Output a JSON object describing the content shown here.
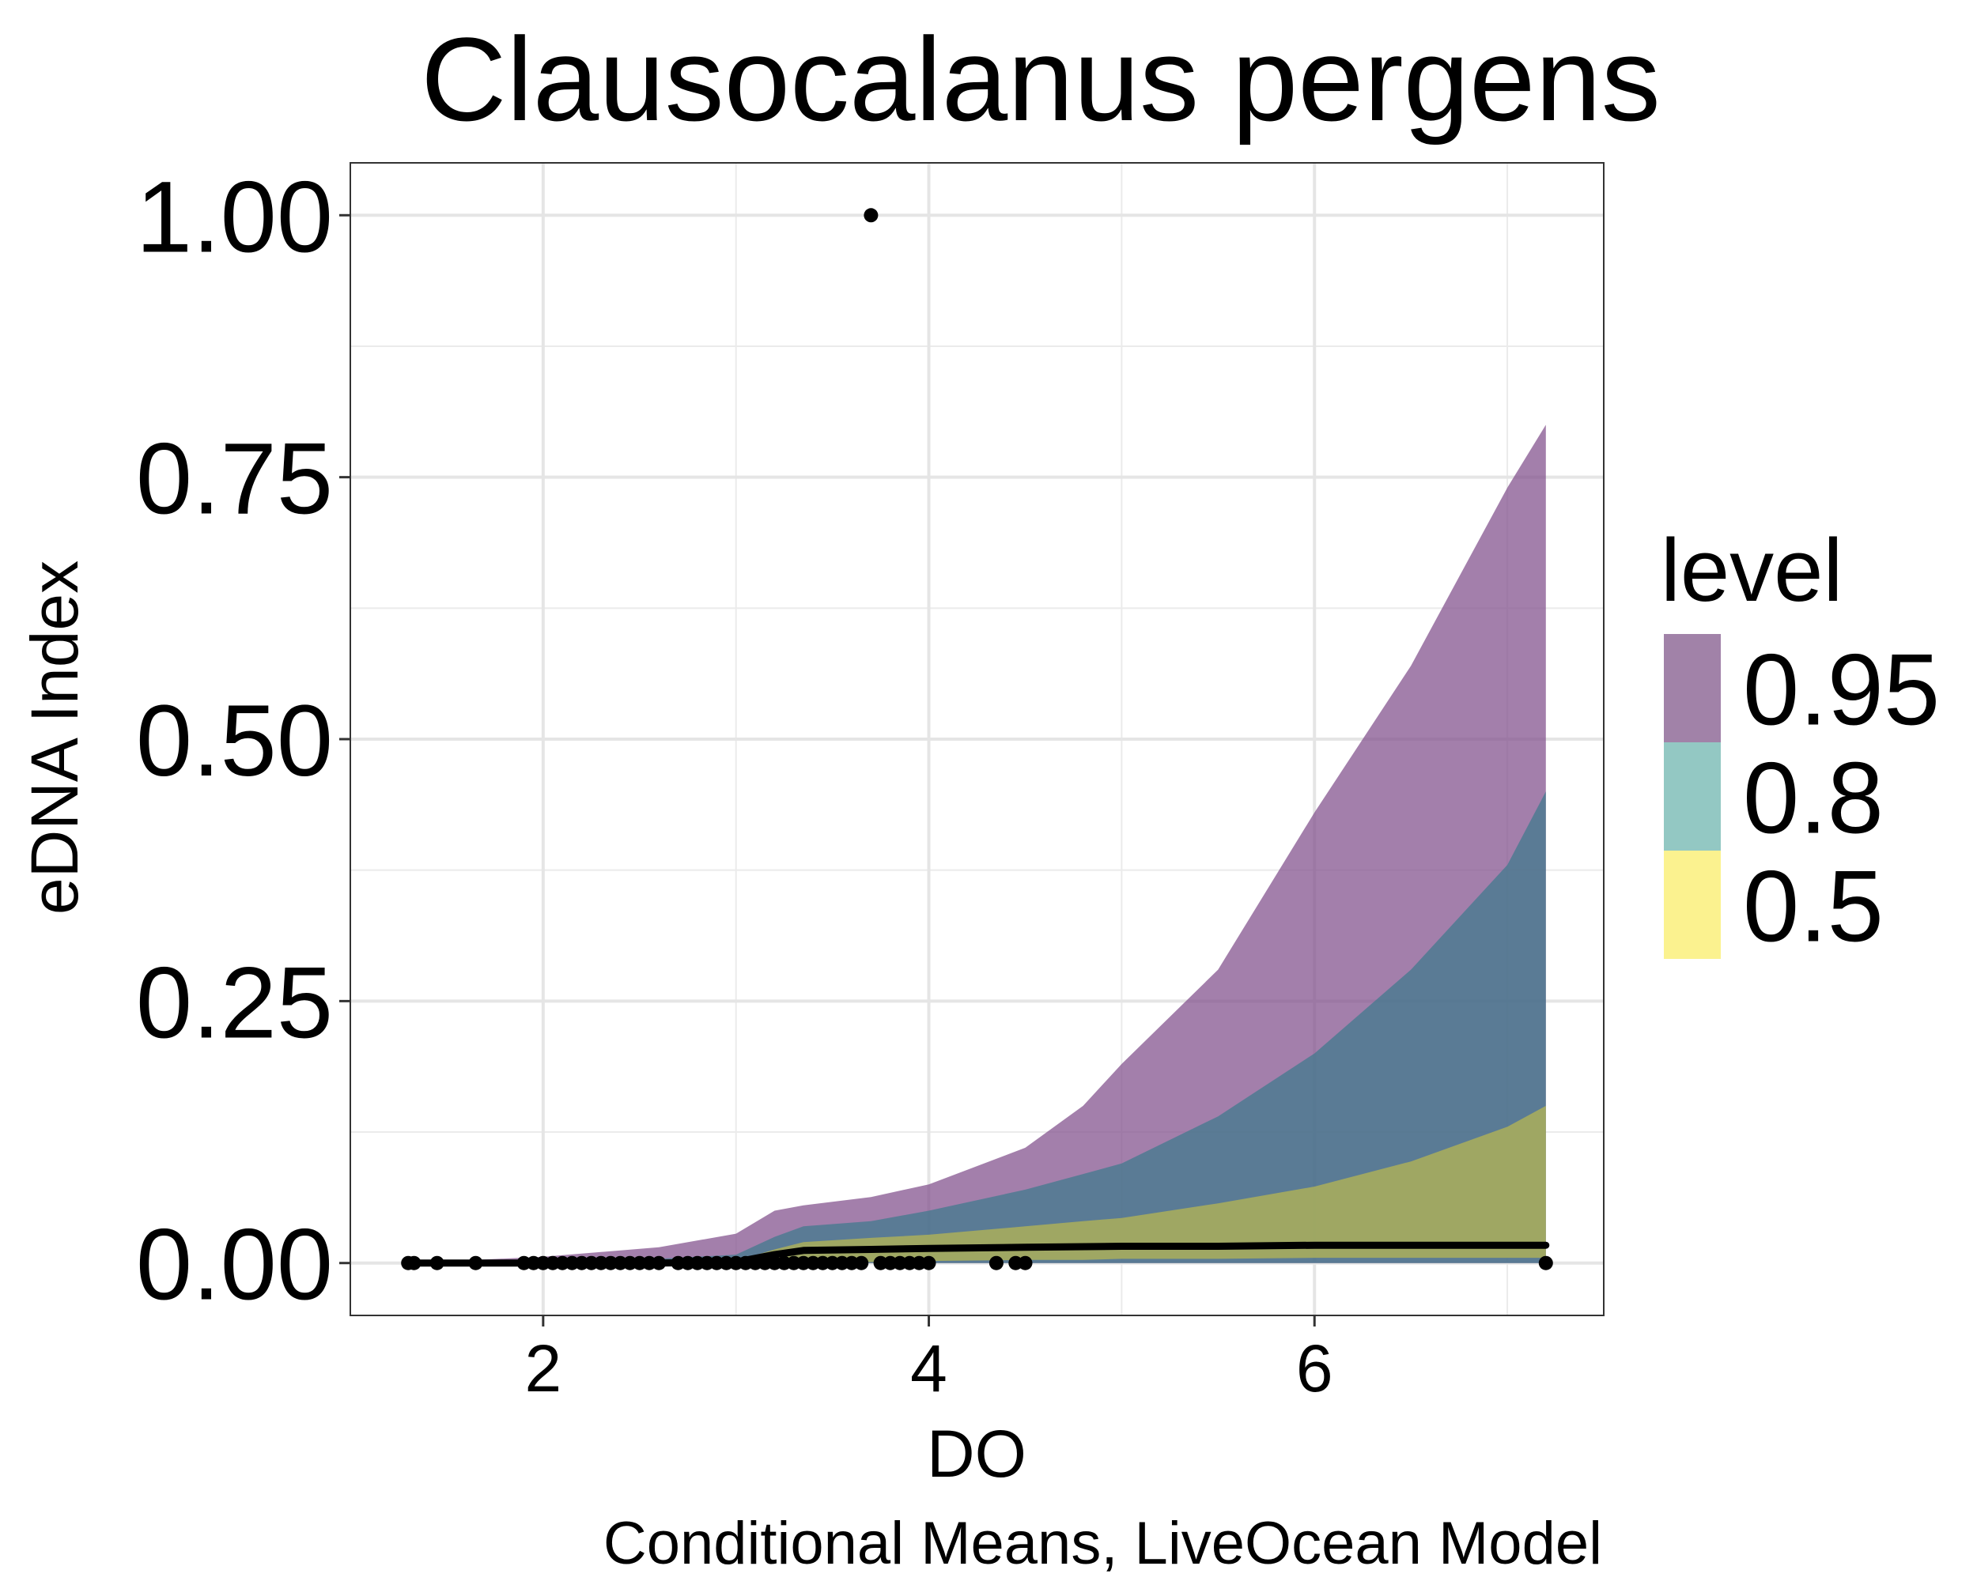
{
  "chart_data": {
    "type": "area",
    "title": "Clausocalanus pergens",
    "xlabel": "DO",
    "ylabel": "eDNA Index",
    "caption": "Conditional Means, LiveOcean Model",
    "xlim": [
      1.0,
      7.5
    ],
    "ylim": [
      -0.05,
      1.05
    ],
    "x_ticks": [
      2,
      4,
      6
    ],
    "x_tick_labels": [
      "2",
      "4",
      "6"
    ],
    "y_ticks": [
      0,
      0.25,
      0.5,
      0.75,
      1.0
    ],
    "y_tick_labels": [
      "0.00",
      "0.25",
      "0.50",
      "0.75",
      "1.00"
    ],
    "grid": true,
    "legend": {
      "title": "level",
      "placement": "right",
      "entries": [
        {
          "label": "0.95",
          "color": "#A182A8"
        },
        {
          "label": "0.8",
          "color": "#93C8C3"
        },
        {
          "label": "0.5",
          "color": "#FBF28F"
        }
      ]
    },
    "bands": [
      {
        "level": "0.95",
        "color": "#7F4E8A",
        "x": [
          1.3,
          2.0,
          2.6,
          3.0,
          3.2,
          3.35,
          3.7,
          4.0,
          4.5,
          4.8,
          5.0,
          5.5,
          6.0,
          6.5,
          7.0,
          7.2
        ],
        "lower": [
          0,
          0,
          0,
          0,
          0,
          0,
          0,
          0,
          0,
          0,
          0,
          0,
          0,
          0,
          0,
          0
        ],
        "upper": [
          0.0,
          0.006,
          0.015,
          0.028,
          0.05,
          0.055,
          0.063,
          0.075,
          0.11,
          0.15,
          0.19,
          0.28,
          0.43,
          0.57,
          0.74,
          0.8
        ]
      },
      {
        "level": "0.8",
        "color": "#3F7A8C",
        "x": [
          1.3,
          2.0,
          2.6,
          3.0,
          3.2,
          3.35,
          3.7,
          4.0,
          4.5,
          4.8,
          5.0,
          5.5,
          6.0,
          6.5,
          7.0,
          7.2
        ],
        "lower": [
          0,
          0,
          0,
          0,
          0,
          0,
          0,
          0,
          0,
          0,
          0,
          0,
          0,
          0,
          0,
          0
        ],
        "upper": [
          0.0,
          0.002,
          0.004,
          0.008,
          0.025,
          0.035,
          0.04,
          0.05,
          0.07,
          0.085,
          0.095,
          0.14,
          0.2,
          0.28,
          0.38,
          0.45
        ]
      },
      {
        "level": "0.5",
        "color": "#BAB851",
        "x": [
          1.3,
          2.0,
          2.6,
          3.0,
          3.2,
          3.35,
          3.7,
          4.0,
          4.5,
          4.8,
          5.0,
          5.5,
          6.0,
          6.5,
          7.0,
          7.2
        ],
        "lower": [
          0,
          0,
          0,
          0,
          0,
          0,
          0.001,
          0.002,
          0.003,
          0.003,
          0.004,
          0.004,
          0.005,
          0.005,
          0.005,
          0.005
        ],
        "upper": [
          0.0,
          0.0,
          0.001,
          0.002,
          0.013,
          0.02,
          0.024,
          0.027,
          0.035,
          0.04,
          0.043,
          0.057,
          0.073,
          0.097,
          0.13,
          0.15
        ]
      }
    ],
    "mean_line": {
      "color": "#000000",
      "x": [
        1.3,
        2.0,
        2.6,
        3.0,
        3.2,
        3.35,
        3.7,
        4.0,
        4.5,
        5.0,
        5.5,
        6.0,
        6.5,
        7.0,
        7.2
      ],
      "y": [
        0.0,
        0.0,
        0.0,
        0.001,
        0.008,
        0.012,
        0.013,
        0.014,
        0.015,
        0.016,
        0.016,
        0.017,
        0.017,
        0.017,
        0.017
      ]
    },
    "points": {
      "color": "#000000",
      "x": [
        1.3,
        1.33,
        1.45,
        1.65,
        1.9,
        1.95,
        2.0,
        2.05,
        2.1,
        2.15,
        2.2,
        2.25,
        2.3,
        2.35,
        2.4,
        2.45,
        2.5,
        2.55,
        2.6,
        2.7,
        2.75,
        2.8,
        2.85,
        2.9,
        2.95,
        3.0,
        3.05,
        3.1,
        3.15,
        3.2,
        3.25,
        3.3,
        3.35,
        3.4,
        3.45,
        3.5,
        3.55,
        3.6,
        3.65,
        3.7,
        3.75,
        3.8,
        3.85,
        3.9,
        3.95,
        4.0,
        4.35,
        4.45,
        4.5,
        7.2
      ],
      "y": [
        0,
        0,
        0,
        0,
        0,
        0,
        0,
        0,
        0,
        0,
        0,
        0,
        0,
        0,
        0,
        0,
        0,
        0,
        0,
        0,
        0,
        0,
        0,
        0,
        0,
        0,
        0,
        0,
        0,
        0,
        0,
        0,
        0,
        0,
        0,
        0,
        0,
        0,
        0,
        1.0,
        0,
        0,
        0,
        0,
        0,
        0,
        0,
        0,
        0,
        0
      ]
    }
  }
}
